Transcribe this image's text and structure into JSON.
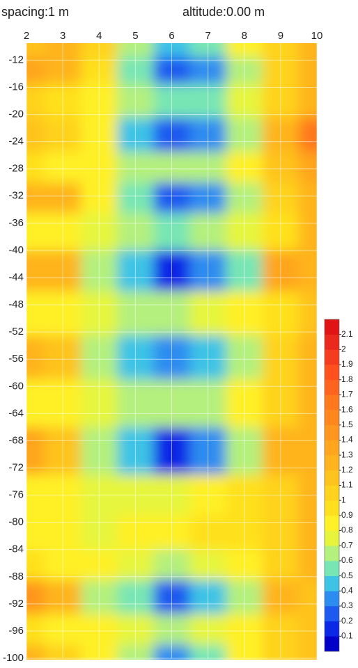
{
  "header": {
    "spacing": "spacing:1  m",
    "altitude": "altitude:0.00  m"
  },
  "chart_data": {
    "type": "contour",
    "x": [
      2,
      3,
      4,
      5,
      6,
      7,
      8,
      9,
      10
    ],
    "y": [
      -10,
      -13,
      -18,
      -23,
      -28,
      -32,
      -37,
      -43,
      -49,
      -56,
      -62,
      -70,
      -76,
      -82,
      -86,
      -91,
      -96,
      -100
    ],
    "z": [
      [
        1.1,
        1.2,
        1.0,
        0.6,
        0.4,
        0.5,
        0.8,
        1.0,
        1.2
      ],
      [
        1.4,
        1.2,
        0.9,
        0.5,
        0.25,
        0.3,
        0.7,
        1.0,
        1.2
      ],
      [
        1.0,
        0.9,
        0.8,
        0.6,
        0.5,
        0.55,
        0.75,
        1.0,
        1.3
      ],
      [
        1.1,
        1.0,
        0.8,
        0.45,
        0.2,
        0.3,
        0.6,
        1.2,
        1.7
      ],
      [
        0.9,
        0.85,
        0.8,
        0.65,
        0.6,
        0.65,
        0.8,
        1.1,
        1.4
      ],
      [
        1.3,
        1.2,
        0.85,
        0.5,
        0.2,
        0.35,
        0.6,
        1.0,
        1.3
      ],
      [
        0.85,
        0.8,
        0.75,
        0.6,
        0.55,
        0.6,
        0.75,
        0.95,
        1.2
      ],
      [
        1.3,
        1.2,
        0.6,
        0.4,
        0.15,
        0.3,
        0.55,
        1.4,
        1.2
      ],
      [
        0.8,
        0.8,
        0.75,
        0.7,
        0.7,
        0.75,
        0.85,
        0.95,
        1.1
      ],
      [
        1.3,
        1.1,
        0.7,
        0.45,
        0.3,
        0.45,
        0.7,
        1.0,
        1.3
      ],
      [
        0.8,
        0.8,
        0.75,
        0.7,
        0.7,
        0.7,
        0.85,
        1.0,
        1.2
      ],
      [
        1.4,
        1.1,
        0.6,
        0.4,
        0.15,
        0.35,
        0.6,
        1.3,
        1.2
      ],
      [
        0.8,
        0.8,
        0.75,
        0.75,
        0.75,
        0.8,
        0.9,
        1.0,
        1.2
      ],
      [
        0.8,
        0.8,
        0.75,
        0.8,
        0.85,
        0.9,
        0.95,
        1.05,
        1.2
      ],
      [
        0.9,
        0.85,
        0.8,
        0.75,
        0.7,
        0.75,
        0.85,
        1.0,
        1.2
      ],
      [
        1.5,
        1.3,
        0.7,
        0.55,
        0.25,
        0.4,
        0.7,
        1.3,
        1.1
      ],
      [
        0.9,
        0.85,
        0.8,
        0.75,
        0.7,
        0.75,
        0.85,
        1.0,
        1.1
      ],
      [
        1.3,
        1.0,
        0.8,
        0.6,
        0.3,
        0.5,
        0.8,
        1.0,
        1.1
      ]
    ],
    "xlim": [
      2,
      10
    ],
    "xticks": [
      2,
      3,
      4,
      5,
      6,
      7,
      8,
      9,
      10
    ],
    "ylim": [
      -9.5,
      -100
    ],
    "yticks": [
      -12,
      -16,
      -20,
      -24,
      -28,
      -32,
      -36,
      -40,
      -44,
      -48,
      -52,
      -56,
      -60,
      -64,
      -68,
      -72,
      -76,
      -80,
      -84,
      -88,
      -92,
      -96,
      -100
    ],
    "grid": true,
    "clim": [
      0,
      2.2
    ],
    "cticks": [
      0.1,
      0.2,
      0.3,
      0.4,
      0.5,
      0.6,
      0.7,
      0.8,
      0.9,
      1,
      1.1,
      1.2,
      1.3,
      1.4,
      1.5,
      1.6,
      1.7,
      1.8,
      1.9,
      2,
      2.1
    ],
    "colors": [
      "#0000c8",
      "#0a28e6",
      "#1e5af0",
      "#2d8cf0",
      "#3cc3e6",
      "#78e6b4",
      "#b4f07d",
      "#e6f53c",
      "#fff028",
      "#ffe01e",
      "#ffd21e",
      "#ffc31e",
      "#ffb41e",
      "#ffa51e",
      "#ff961e",
      "#ff871e",
      "#ff781e",
      "#ff641e",
      "#ff501e",
      "#f53c1e",
      "#eb281e",
      "#e01414"
    ]
  }
}
